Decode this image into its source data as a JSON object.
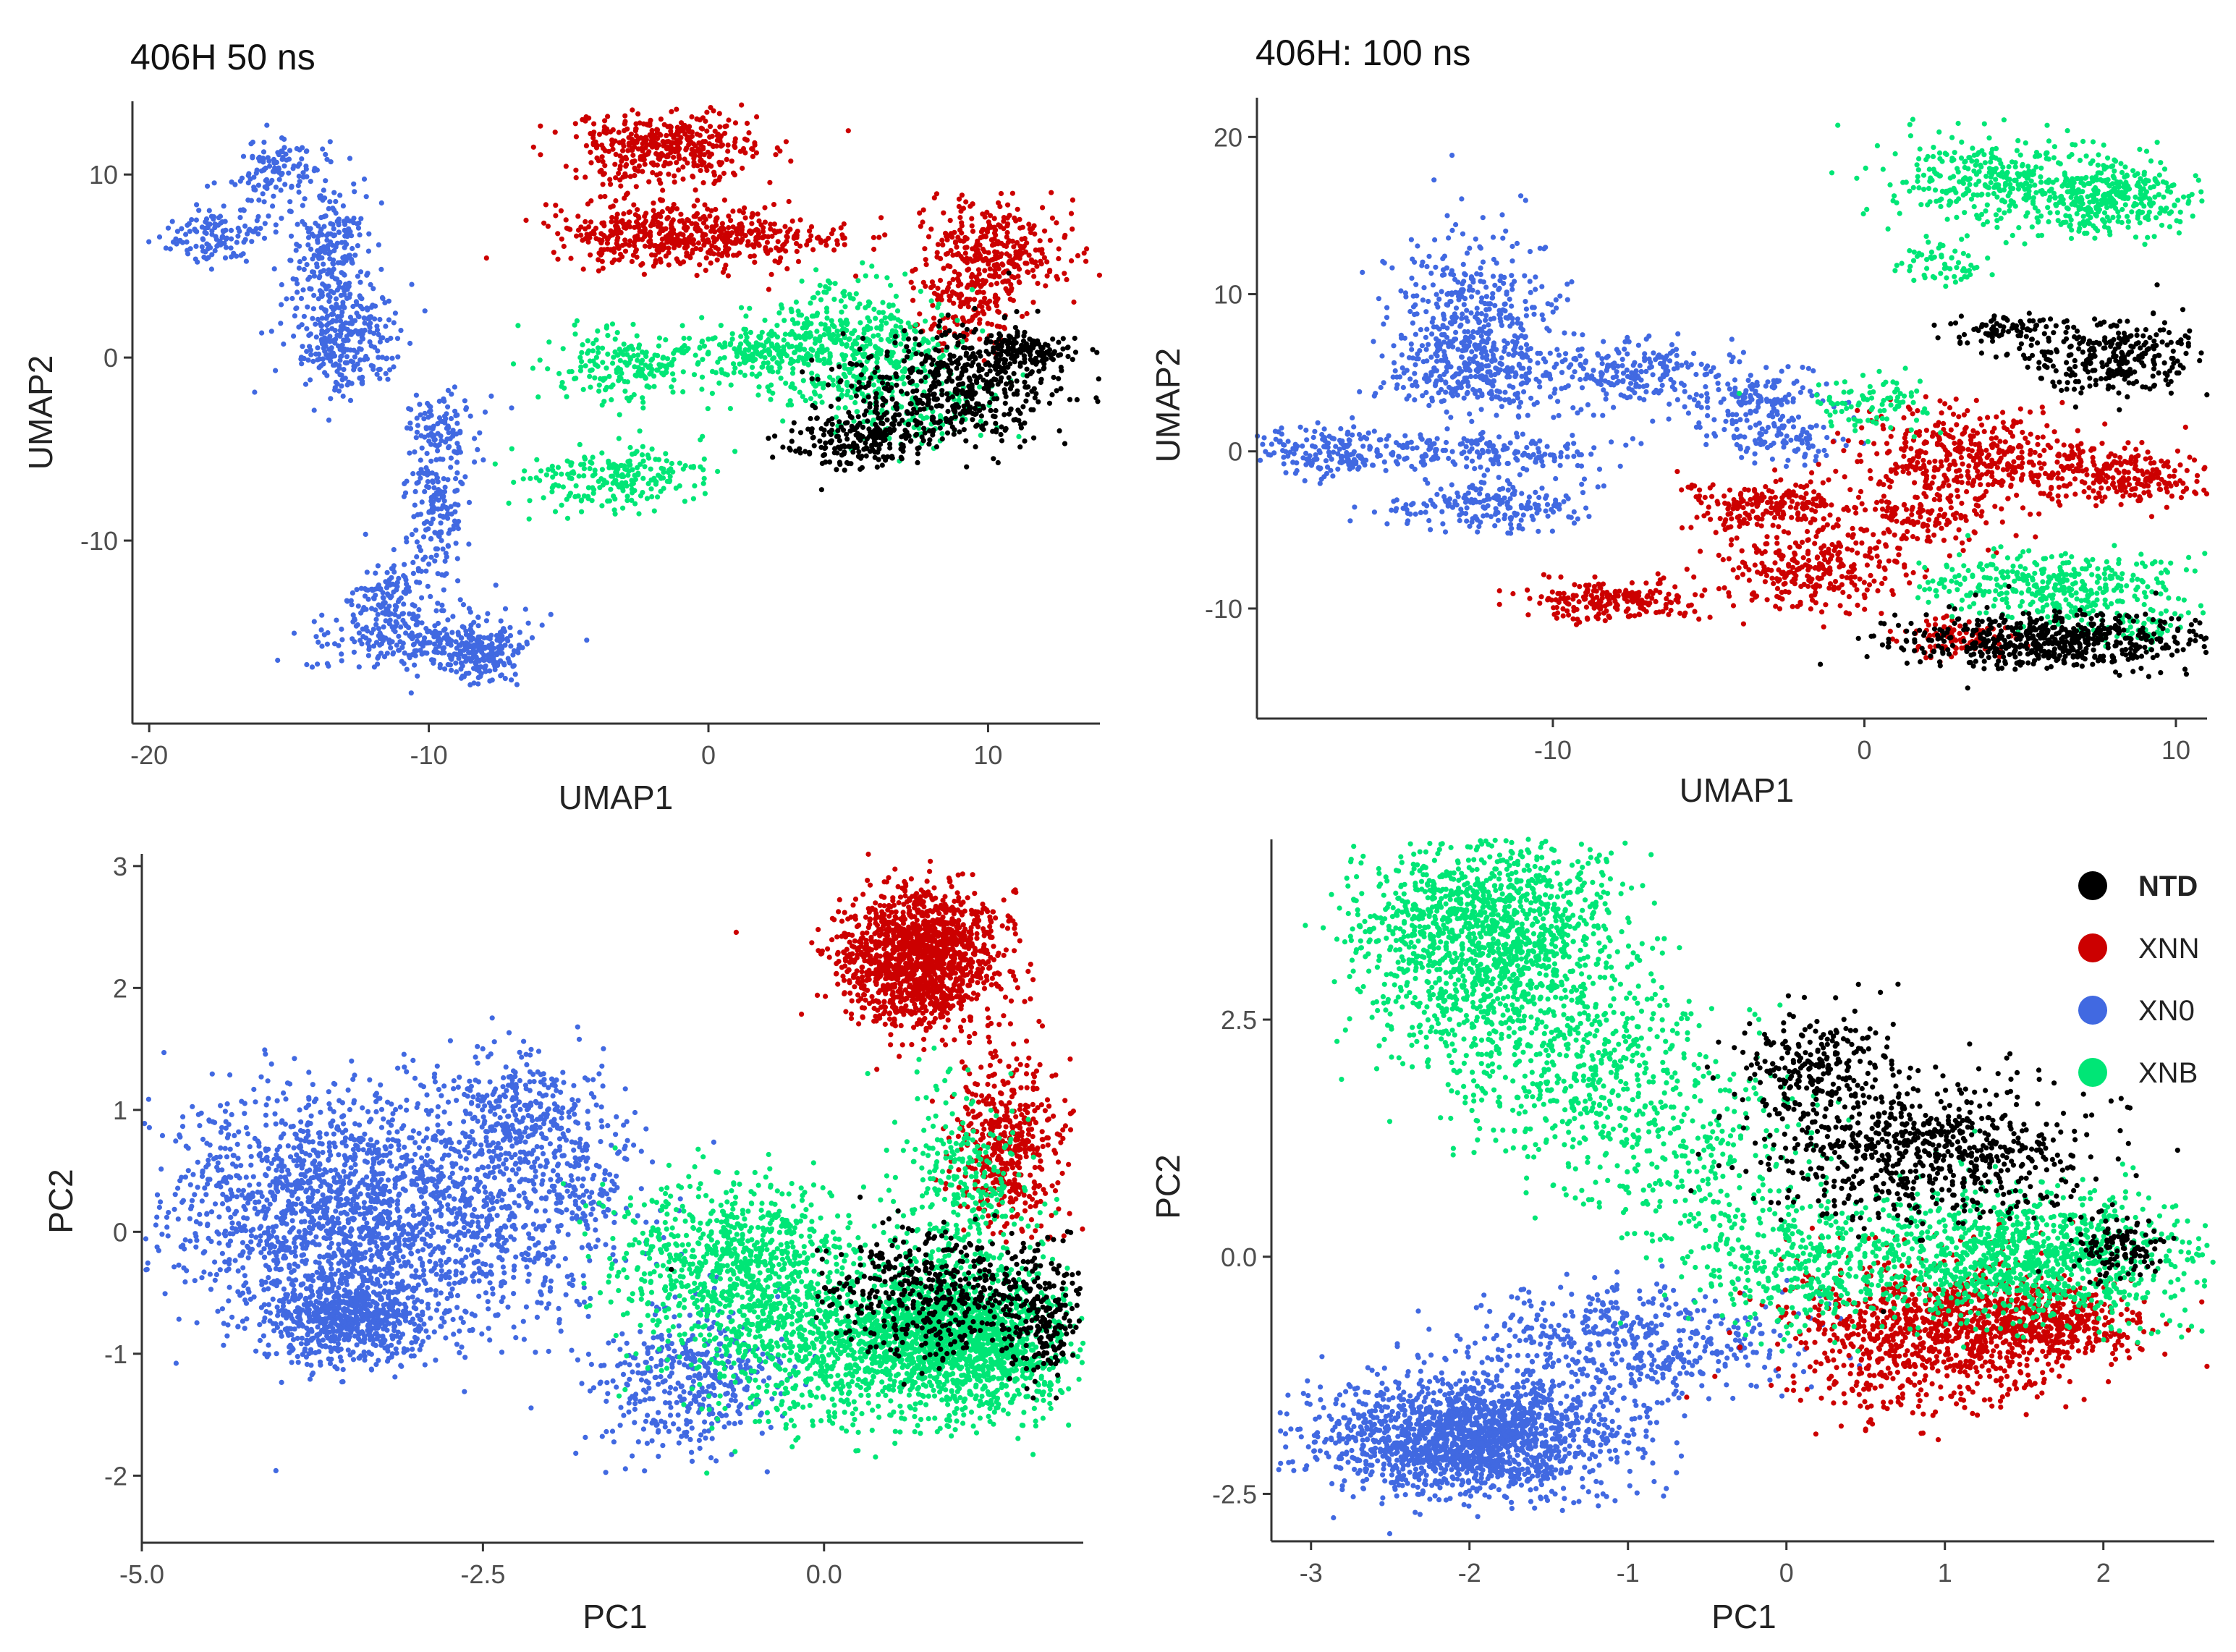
{
  "colors": {
    "NTD": "#000000",
    "XNN": "#cc0000",
    "XN0": "#4169e1",
    "XNB": "#00e676"
  },
  "legend": [
    {
      "key": "NTD",
      "label": "NTD"
    },
    {
      "key": "XNN",
      "label": "XNN"
    },
    {
      "key": "XN0",
      "label": "XN0"
    },
    {
      "key": "XNB",
      "label": "XNB"
    }
  ],
  "chart_data": [
    {
      "id": "umap-50ns",
      "type": "scatter",
      "title": "406H 50 ns",
      "xlabel": "UMAP1",
      "ylabel": "UMAP2",
      "xlim": [
        -20.6,
        14
      ],
      "ylim": [
        -20,
        14
      ],
      "xticks": [
        {
          "value": -20,
          "label": "-20"
        },
        {
          "value": -10,
          "label": "-10"
        },
        {
          "value": 0,
          "label": "0"
        },
        {
          "value": 10,
          "label": "10"
        }
      ],
      "yticks": [
        {
          "value": -10,
          "label": "-10"
        },
        {
          "value": 0,
          "label": "0"
        },
        {
          "value": 10,
          "label": "10"
        }
      ],
      "clusters": [
        {
          "series": "XN0",
          "x": -17.5,
          "y": 6.8,
          "sx": 1.0,
          "sy": 0.7,
          "n": 130
        },
        {
          "series": "XN0",
          "x": -15.5,
          "y": 10.2,
          "sx": 0.8,
          "sy": 0.8,
          "n": 110
        },
        {
          "series": "XN0",
          "x": -13.5,
          "y": 6.0,
          "sx": 0.7,
          "sy": 2.0,
          "n": 220
        },
        {
          "series": "XN0",
          "x": -13.0,
          "y": 1.0,
          "sx": 1.0,
          "sy": 1.6,
          "n": 300
        },
        {
          "series": "XN0",
          "x": -9.5,
          "y": -4.0,
          "sx": 0.7,
          "sy": 1.0,
          "n": 100
        },
        {
          "series": "XN0",
          "x": -9.8,
          "y": -8.5,
          "sx": 0.5,
          "sy": 2.0,
          "n": 160
        },
        {
          "series": "XN0",
          "x": -11.5,
          "y": -13.0,
          "sx": 0.6,
          "sy": 1.0,
          "n": 120
        },
        {
          "series": "XN0",
          "x": -10.0,
          "y": -15.5,
          "sx": 1.8,
          "sy": 0.9,
          "n": 300
        },
        {
          "series": "XN0",
          "x": -8.0,
          "y": -16.5,
          "sx": 0.6,
          "sy": 0.7,
          "n": 110
        },
        {
          "series": "XNN",
          "x": -1.5,
          "y": 11.5,
          "sx": 1.7,
          "sy": 1.1,
          "n": 420
        },
        {
          "series": "XNN",
          "x": -2.5,
          "y": 6.8,
          "sx": 1.6,
          "sy": 0.8,
          "n": 260
        },
        {
          "series": "XNN",
          "x": 0.5,
          "y": 6.5,
          "sx": 1.5,
          "sy": 0.9,
          "n": 240
        },
        {
          "series": "XNN",
          "x": 3.5,
          "y": 6.5,
          "sx": 1.6,
          "sy": 0.4,
          "n": 60
        },
        {
          "series": "XNN",
          "x": 10.5,
          "y": 6.0,
          "sx": 1.3,
          "sy": 1.3,
          "n": 300
        },
        {
          "series": "XNN",
          "x": 9.2,
          "y": 3.0,
          "sx": 0.9,
          "sy": 1.2,
          "n": 160
        },
        {
          "series": "XNB",
          "x": -3.0,
          "y": -0.5,
          "sx": 1.4,
          "sy": 0.9,
          "n": 200
        },
        {
          "series": "XNB",
          "x": -3.5,
          "y": -6.5,
          "sx": 1.7,
          "sy": 0.9,
          "n": 220
        },
        {
          "series": "XNB",
          "x": 5.0,
          "y": 0.5,
          "sx": 1.8,
          "sy": 1.6,
          "n": 520
        },
        {
          "series": "XNB",
          "x": 1.5,
          "y": 0.3,
          "sx": 1.3,
          "sy": 0.6,
          "n": 120
        },
        {
          "series": "NTD",
          "x": 9.0,
          "y": -1.5,
          "sx": 2.0,
          "sy": 1.6,
          "n": 520
        },
        {
          "series": "NTD",
          "x": 5.5,
          "y": -4.5,
          "sx": 1.3,
          "sy": 0.8,
          "n": 220
        },
        {
          "series": "NTD",
          "x": 11.0,
          "y": 0.5,
          "sx": 0.9,
          "sy": 0.5,
          "n": 120
        },
        {
          "series": "XNB",
          "x": 7.5,
          "y": -3.0,
          "sx": 1.5,
          "sy": 1.0,
          "n": 110
        }
      ]
    },
    {
      "id": "umap-100ns",
      "type": "scatter",
      "title": "406H: 100 ns",
      "xlabel": "UMAP1",
      "ylabel": "UMAP2",
      "xlim": [
        -19.5,
        11
      ],
      "ylim": [
        -17,
        22.5
      ],
      "xticks": [
        {
          "value": -10,
          "label": "-10"
        },
        {
          "value": 0,
          "label": "0"
        },
        {
          "value": 10,
          "label": "10"
        }
      ],
      "yticks": [
        {
          "value": -10,
          "label": "-10"
        },
        {
          "value": 0,
          "label": "0"
        },
        {
          "value": 10,
          "label": "10"
        },
        {
          "value": 20,
          "label": "20"
        }
      ],
      "clusters": [
        {
          "series": "XNB",
          "x": 3.5,
          "y": 17.5,
          "sx": 1.6,
          "sy": 1.3,
          "n": 240
        },
        {
          "series": "XNB",
          "x": 6.5,
          "y": 16.5,
          "sx": 1.5,
          "sy": 1.3,
          "n": 260
        },
        {
          "series": "XNB",
          "x": 8.5,
          "y": 16.0,
          "sx": 1.2,
          "sy": 1.1,
          "n": 180
        },
        {
          "series": "XNB",
          "x": 2.5,
          "y": 11.8,
          "sx": 0.8,
          "sy": 0.7,
          "n": 60
        },
        {
          "series": "XNB",
          "x": 0.3,
          "y": 3.0,
          "sx": 0.9,
          "sy": 0.9,
          "n": 90
        },
        {
          "series": "NTD",
          "x": 8.0,
          "y": 6.0,
          "sx": 1.6,
          "sy": 1.2,
          "n": 300
        },
        {
          "series": "NTD",
          "x": 4.5,
          "y": 7.8,
          "sx": 0.8,
          "sy": 0.5,
          "n": 80
        },
        {
          "series": "XN0",
          "x": -12.5,
          "y": 9.0,
          "sx": 1.3,
          "sy": 2.6,
          "n": 360
        },
        {
          "series": "XN0",
          "x": -12.5,
          "y": 5.0,
          "sx": 1.4,
          "sy": 1.3,
          "n": 260
        },
        {
          "series": "XN0",
          "x": -7.5,
          "y": 5.0,
          "sx": 1.3,
          "sy": 1.0,
          "n": 190
        },
        {
          "series": "XN0",
          "x": -3.5,
          "y": 3.0,
          "sx": 1.3,
          "sy": 1.2,
          "n": 170
        },
        {
          "series": "XN0",
          "x": -2.5,
          "y": 0.5,
          "sx": 1.0,
          "sy": 0.6,
          "n": 80
        },
        {
          "series": "XN0",
          "x": -17.0,
          "y": 0.0,
          "sx": 1.3,
          "sy": 0.8,
          "n": 190
        },
        {
          "series": "XN0",
          "x": -12.0,
          "y": 0.0,
          "sx": 1.8,
          "sy": 0.6,
          "n": 170
        },
        {
          "series": "XN0",
          "x": -12.0,
          "y": -3.5,
          "sx": 1.5,
          "sy": 0.8,
          "n": 200
        },
        {
          "series": "XNN",
          "x": -8.0,
          "y": -9.5,
          "sx": 1.4,
          "sy": 0.6,
          "n": 210
        },
        {
          "series": "XNN",
          "x": -3.0,
          "y": -3.5,
          "sx": 1.5,
          "sy": 0.9,
          "n": 220
        },
        {
          "series": "XNN",
          "x": -1.5,
          "y": -7.5,
          "sx": 1.5,
          "sy": 1.3,
          "n": 280
        },
        {
          "series": "XNN",
          "x": 3.5,
          "y": -0.5,
          "sx": 1.8,
          "sy": 1.6,
          "n": 420
        },
        {
          "series": "XNN",
          "x": 8.5,
          "y": -1.5,
          "sx": 1.4,
          "sy": 0.9,
          "n": 240
        },
        {
          "series": "XNN",
          "x": 2.0,
          "y": -4.0,
          "sx": 1.0,
          "sy": 1.0,
          "n": 120
        },
        {
          "series": "XNB",
          "x": 6.0,
          "y": -8.5,
          "sx": 2.0,
          "sy": 1.0,
          "n": 360
        },
        {
          "series": "NTD",
          "x": 6.0,
          "y": -12.0,
          "sx": 2.4,
          "sy": 0.9,
          "n": 560
        },
        {
          "series": "XNN",
          "x": 3.0,
          "y": -12.0,
          "sx": 1.0,
          "sy": 0.6,
          "n": 110
        },
        {
          "series": "XNB",
          "x": 8.5,
          "y": -11.0,
          "sx": 1.0,
          "sy": 0.6,
          "n": 70
        }
      ]
    },
    {
      "id": "pca-50ns",
      "type": "scatter",
      "title": "",
      "xlabel": "PC1",
      "ylabel": "PC2",
      "xlim": [
        -5.0,
        1.9
      ],
      "ylim": [
        -2.55,
        3.1
      ],
      "xticks": [
        {
          "value": -5.0,
          "label": "-5.0"
        },
        {
          "value": -2.5,
          "label": "-2.5"
        },
        {
          "value": 0.0,
          "label": "0.0"
        }
      ],
      "yticks": [
        {
          "value": -2,
          "label": "-2"
        },
        {
          "value": -1,
          "label": "-1"
        },
        {
          "value": 0,
          "label": "0"
        },
        {
          "value": 1,
          "label": "1"
        },
        {
          "value": 2,
          "label": "2"
        },
        {
          "value": 3,
          "label": "3"
        }
      ],
      "clusters": [
        {
          "series": "XN0",
          "x": -3.7,
          "y": 0.2,
          "sx": 0.55,
          "sy": 0.45,
          "n": 1300
        },
        {
          "series": "XN0",
          "x": -3.5,
          "y": -0.7,
          "sx": 0.3,
          "sy": 0.2,
          "n": 700
        },
        {
          "series": "XN0",
          "x": -2.7,
          "y": 0.1,
          "sx": 0.5,
          "sy": 0.5,
          "n": 700
        },
        {
          "series": "XN0",
          "x": -2.2,
          "y": 1.0,
          "sx": 0.3,
          "sy": 0.25,
          "n": 300
        },
        {
          "series": "XN0",
          "x": -1.9,
          "y": 0.3,
          "sx": 0.3,
          "sy": 0.35,
          "n": 200
        },
        {
          "series": "XN0",
          "x": -1.0,
          "y": -1.2,
          "sx": 0.35,
          "sy": 0.3,
          "n": 400
        },
        {
          "series": "XNB",
          "x": -0.6,
          "y": -0.3,
          "sx": 0.45,
          "sy": 0.35,
          "n": 900
        },
        {
          "series": "XNB",
          "x": 0.3,
          "y": -1.0,
          "sx": 0.6,
          "sy": 0.3,
          "n": 900
        },
        {
          "series": "XNB",
          "x": 1.2,
          "y": -0.9,
          "sx": 0.3,
          "sy": 0.3,
          "n": 800
        },
        {
          "series": "XNB",
          "x": 1.0,
          "y": 0.3,
          "sx": 0.25,
          "sy": 0.4,
          "n": 300
        },
        {
          "series": "XNN",
          "x": 0.7,
          "y": 2.25,
          "sx": 0.28,
          "sy": 0.27,
          "n": 1500
        },
        {
          "series": "XNN",
          "x": 1.35,
          "y": 0.75,
          "sx": 0.2,
          "sy": 0.35,
          "n": 450
        },
        {
          "series": "NTD",
          "x": 0.8,
          "y": -0.5,
          "sx": 0.4,
          "sy": 0.25,
          "n": 450
        },
        {
          "series": "NTD",
          "x": 1.6,
          "y": -0.7,
          "sx": 0.15,
          "sy": 0.25,
          "n": 200
        },
        {
          "series": "XNB",
          "x": 0.7,
          "y": -0.8,
          "sx": 0.3,
          "sy": 0.2,
          "n": 450
        }
      ]
    },
    {
      "id": "pca-100ns",
      "type": "scatter",
      "title": "",
      "xlabel": "PC1",
      "ylabel": "PC2",
      "xlim": [
        -3.25,
        2.7
      ],
      "ylim": [
        -3.0,
        4.4
      ],
      "xticks": [
        {
          "value": -3,
          "label": "-3"
        },
        {
          "value": -2,
          "label": "-2"
        },
        {
          "value": -1,
          "label": "-1"
        },
        {
          "value": 0,
          "label": "0"
        },
        {
          "value": 1,
          "label": "1"
        },
        {
          "value": 2,
          "label": "2"
        }
      ],
      "yticks": [
        {
          "value": -2.5,
          "label": "-2.5"
        },
        {
          "value": 0.0,
          "label": "0.0"
        },
        {
          "value": 2.5,
          "label": "2.5"
        }
      ],
      "clusters": [
        {
          "series": "XNB",
          "x": -1.9,
          "y": 3.4,
          "sx": 0.4,
          "sy": 0.55,
          "n": 1500
        },
        {
          "series": "XNB",
          "x": -1.3,
          "y": 2.0,
          "sx": 0.45,
          "sy": 0.5,
          "n": 500
        },
        {
          "series": "XNB",
          "x": -0.6,
          "y": 1.0,
          "sx": 0.4,
          "sy": 0.5,
          "n": 250
        },
        {
          "series": "XN0",
          "x": -2.0,
          "y": -1.9,
          "sx": 0.45,
          "sy": 0.3,
          "n": 1800
        },
        {
          "series": "XN0",
          "x": -1.0,
          "y": -0.9,
          "sx": 0.5,
          "sy": 0.3,
          "n": 500
        },
        {
          "series": "NTD",
          "x": 0.9,
          "y": 1.1,
          "sx": 0.5,
          "sy": 0.35,
          "n": 700
        },
        {
          "series": "NTD",
          "x": 0.2,
          "y": 2.0,
          "sx": 0.25,
          "sy": 0.3,
          "n": 250
        },
        {
          "series": "XNN",
          "x": 0.9,
          "y": -0.8,
          "sx": 0.45,
          "sy": 0.4,
          "n": 900
        },
        {
          "series": "XNN",
          "x": 1.7,
          "y": -0.7,
          "sx": 0.3,
          "sy": 0.2,
          "n": 400
        },
        {
          "series": "XNB",
          "x": 1.5,
          "y": 0.0,
          "sx": 0.55,
          "sy": 0.35,
          "n": 1100
        },
        {
          "series": "XNB",
          "x": 0.1,
          "y": -0.1,
          "sx": 0.35,
          "sy": 0.35,
          "n": 350
        },
        {
          "series": "NTD",
          "x": 2.1,
          "y": 0.1,
          "sx": 0.15,
          "sy": 0.15,
          "n": 120
        }
      ]
    }
  ]
}
